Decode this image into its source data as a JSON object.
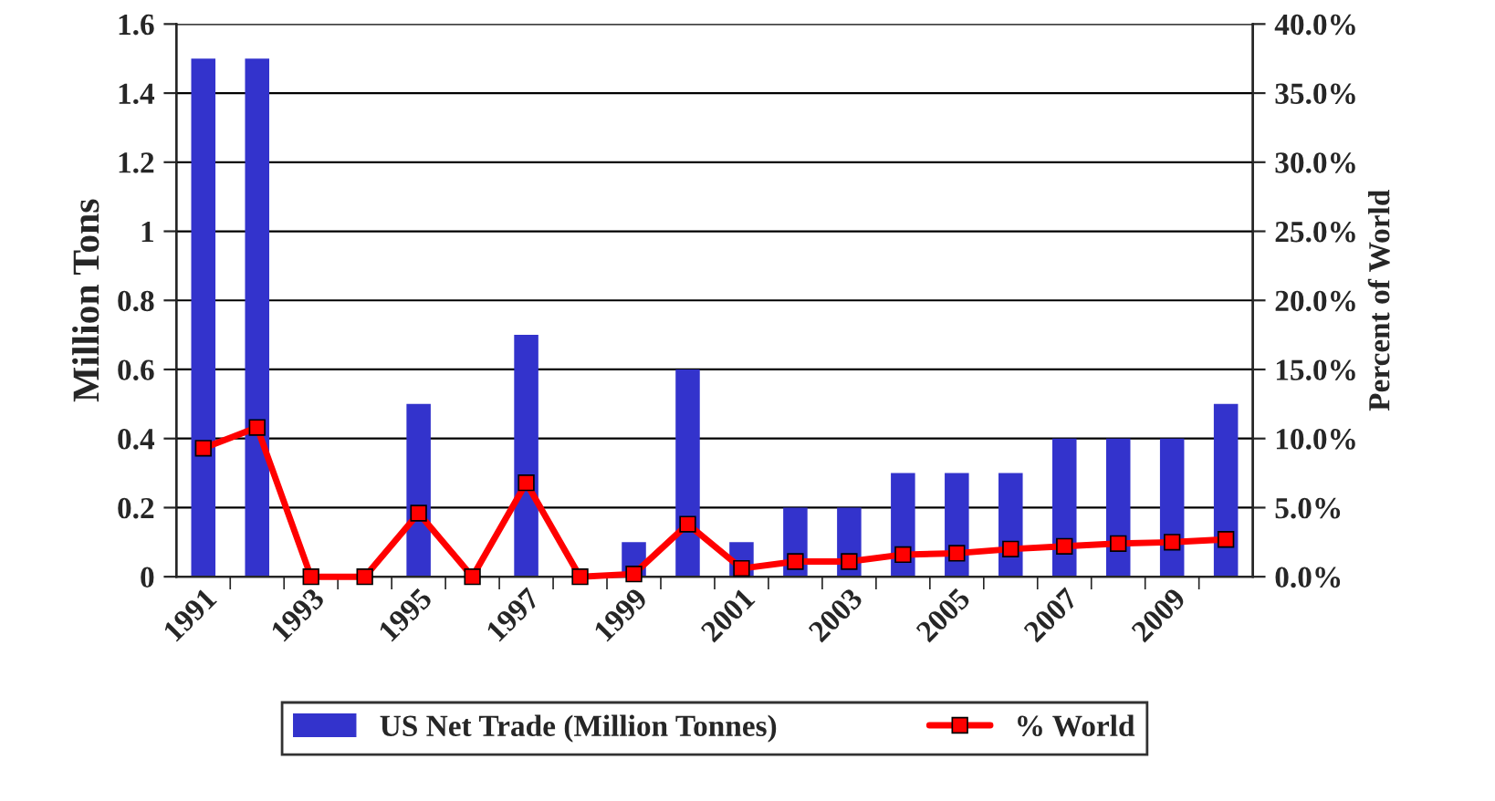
{
  "chart_data": {
    "type": "bar",
    "categories": [
      "1991",
      null,
      "1993",
      null,
      "1995",
      null,
      "1997",
      null,
      "1999",
      null,
      "2001",
      null,
      "2003",
      null,
      "2005",
      null,
      "2007",
      null,
      "2009",
      null
    ],
    "series": [
      {
        "name": "US Net Trade (Million Tonnes)",
        "color": "#3333cc",
        "values": [
          1.5,
          1.5,
          0,
          0,
          0.5,
          0,
          0.7,
          0,
          0.1,
          0.6,
          0.1,
          0.2,
          0.2,
          0.3,
          0.3,
          0.3,
          0.4,
          0.4,
          0.4,
          0.5
        ]
      },
      {
        "name": "% World",
        "type": "line",
        "axis": "y2",
        "color": "#ff0000",
        "marker": "square",
        "line_style": "solid",
        "values": [
          9.3,
          10.8,
          0,
          0,
          4.6,
          0,
          6.8,
          0,
          0.2,
          3.8,
          0.6,
          1.1,
          1.1,
          1.6,
          1.7,
          2.0,
          2.2,
          2.4,
          2.5,
          2.7
        ]
      }
    ],
    "ylabel": "Million Tons",
    "y2label": "Percent of World",
    "ylim": [
      0,
      1.6
    ],
    "yticks": [
      0,
      0.2,
      0.4,
      0.6,
      0.8,
      1,
      1.2,
      1.4,
      1.6
    ],
    "y2lim": [
      0,
      40
    ],
    "y2ticks": [
      {
        "value": 0,
        "label": "0.0%"
      },
      {
        "value": 5,
        "label": "5.0%"
      },
      {
        "value": 10,
        "label": "10.0%"
      },
      {
        "value": 15,
        "label": "15.0%"
      },
      {
        "value": 20,
        "label": "20.0%"
      },
      {
        "value": 25,
        "label": "25.0%"
      },
      {
        "value": 30,
        "label": "30.0%"
      },
      {
        "value": 35,
        "label": "35.0%"
      },
      {
        "value": 40,
        "label": "40.0%"
      }
    ],
    "grid": "y",
    "legend": "bottom"
  }
}
